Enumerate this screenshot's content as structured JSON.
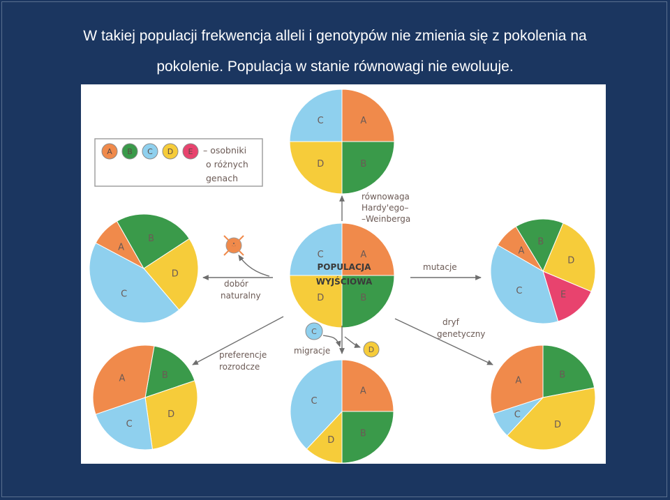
{
  "slide": {
    "title_line1": "W takiej populacji frekwencja alleli i genotypów nie zmienia się z pokolenia na",
    "title_line2": "pokolenie. Populacja w stanie równowagi nie ewoluuje."
  },
  "colors": {
    "A": "#f08a4b",
    "B": "#3a9a4a",
    "C": "#8fd0ee",
    "D": "#f6cc3a",
    "E": "#e8436e",
    "background": "#1b3660",
    "text": "#6b5a55"
  },
  "legend": {
    "items": [
      "A",
      "B",
      "C",
      "D",
      "E"
    ],
    "text_line1": "– osobniki",
    "text_line2": "o różnych",
    "text_line3": "genach"
  },
  "center": {
    "label_line1": "POPULACJA",
    "label_line2": "WYJŚCIOWA"
  },
  "labels": {
    "top_line1": "równowaga",
    "top_line2": "Hardy'ego–",
    "top_line3": "–Weinberga",
    "left_line1": "dobór",
    "left_line2": "naturalny",
    "right": "mutacje",
    "bottom_left_line1": "preferencje",
    "bottom_left_line2": "rozrodcze",
    "bottom": "migracje",
    "bottom_right_line1": "dryf",
    "bottom_right_line2": "genetyczny",
    "removed_allele": "A",
    "migrant_out": "C",
    "migrant_in": "D"
  },
  "chart_data": [
    {
      "type": "pie",
      "id": "center",
      "slices": [
        {
          "label": "A",
          "value": 25
        },
        {
          "label": "B",
          "value": 25
        },
        {
          "label": "D",
          "value": 25
        },
        {
          "label": "C",
          "value": 25
        }
      ]
    },
    {
      "type": "pie",
      "id": "top",
      "slices": [
        {
          "label": "A",
          "value": 25
        },
        {
          "label": "B",
          "value": 25
        },
        {
          "label": "D",
          "value": 25
        },
        {
          "label": "C",
          "value": 25
        }
      ]
    },
    {
      "type": "pie",
      "id": "left",
      "slices": [
        {
          "label": "A",
          "value": 9
        },
        {
          "label": "B",
          "value": 24
        },
        {
          "label": "D",
          "value": 23
        },
        {
          "label": "C",
          "value": 44
        }
      ]
    },
    {
      "type": "pie",
      "id": "right",
      "slices": [
        {
          "label": "A",
          "value": 8
        },
        {
          "label": "B",
          "value": 15
        },
        {
          "label": "D",
          "value": 25
        },
        {
          "label": "E",
          "value": 14
        },
        {
          "label": "C",
          "value": 38
        }
      ]
    },
    {
      "type": "pie",
      "id": "bottom_left",
      "slices": [
        {
          "label": "B",
          "value": 17
        },
        {
          "label": "D",
          "value": 28
        },
        {
          "label": "C",
          "value": 22
        },
        {
          "label": "A",
          "value": 33
        }
      ]
    },
    {
      "type": "pie",
      "id": "bottom",
      "slices": [
        {
          "label": "A",
          "value": 25
        },
        {
          "label": "B",
          "value": 25
        },
        {
          "label": "D",
          "value": 12
        },
        {
          "label": "C",
          "value": 38
        }
      ]
    },
    {
      "type": "pie",
      "id": "bottom_right",
      "slices": [
        {
          "label": "B",
          "value": 22
        },
        {
          "label": "D",
          "value": 40
        },
        {
          "label": "C",
          "value": 8
        },
        {
          "label": "A",
          "value": 30
        }
      ]
    }
  ]
}
